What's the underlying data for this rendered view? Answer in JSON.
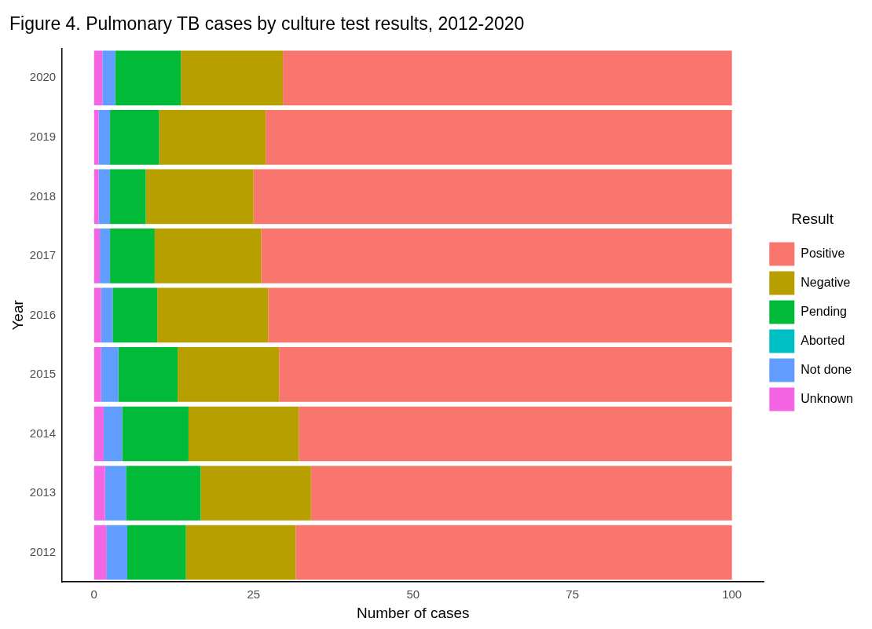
{
  "chart_data": {
    "type": "bar",
    "orientation": "horizontal",
    "stacked": true,
    "title": "Figure 4. Pulmonary TB cases by culture test results, 2012-2020",
    "xlabel": "Number of cases",
    "ylabel": "Year",
    "legend_title": "Result",
    "legend": "right",
    "grid": false,
    "categories": [
      "2020",
      "2019",
      "2018",
      "2017",
      "2016",
      "2015",
      "2014",
      "2013",
      "2012"
    ],
    "xlim": [
      -5,
      105
    ],
    "xticks": [
      0,
      25,
      50,
      75,
      100
    ],
    "series": [
      {
        "name": "Unknown",
        "color": "#f564e3",
        "values": [
          1.3,
          0.7,
          0.7,
          0.9,
          1.1,
          1.1,
          1.5,
          1.7,
          1.9
        ]
      },
      {
        "name": "Not done",
        "color": "#619cff",
        "values": [
          2.0,
          1.8,
          1.8,
          1.6,
          1.8,
          2.7,
          2.9,
          3.3,
          3.3
        ]
      },
      {
        "name": "Aborted",
        "color": "#00bfc4",
        "values": [
          0,
          0,
          0,
          0,
          0,
          0,
          0,
          0,
          0
        ]
      },
      {
        "name": "Pending",
        "color": "#00ba38",
        "values": [
          10.3,
          7.7,
          5.6,
          7.0,
          7.0,
          9.3,
          10.4,
          11.7,
          9.2
        ]
      },
      {
        "name": "Negative",
        "color": "#b79f00",
        "values": [
          16.0,
          16.7,
          16.9,
          16.7,
          17.4,
          15.9,
          17.3,
          17.3,
          17.2
        ]
      },
      {
        "name": "Positive",
        "color": "#f8766d",
        "values": [
          70.4,
          73.1,
          75.0,
          73.8,
          72.7,
          71.0,
          67.9,
          66.0,
          68.4
        ]
      }
    ]
  }
}
